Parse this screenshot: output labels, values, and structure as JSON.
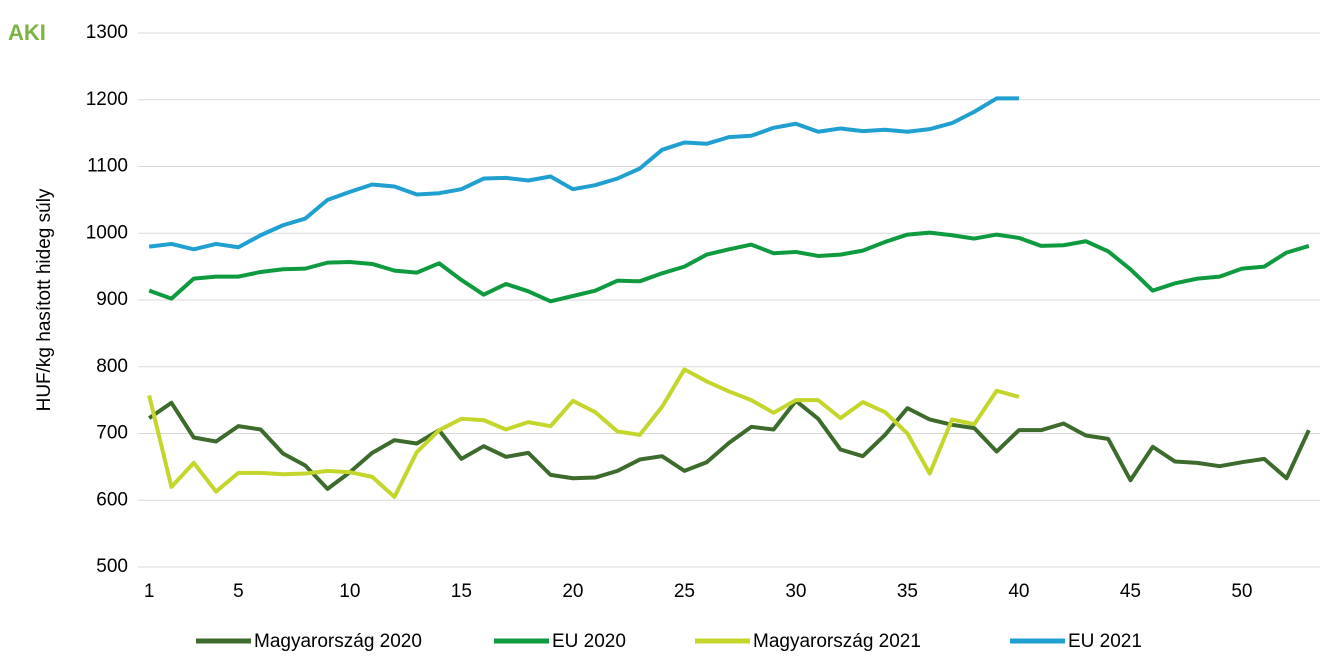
{
  "chart_data": {
    "type": "line",
    "logo": "AKI",
    "ylabel": "HUF/kg hasított hideg súly",
    "x": [
      1,
      2,
      3,
      4,
      5,
      6,
      7,
      8,
      9,
      10,
      11,
      12,
      13,
      14,
      15,
      16,
      17,
      18,
      19,
      20,
      21,
      22,
      23,
      24,
      25,
      26,
      27,
      28,
      29,
      30,
      31,
      32,
      33,
      34,
      35,
      36,
      37,
      38,
      39,
      40,
      41,
      42,
      43,
      44,
      45,
      46,
      47,
      48,
      49,
      50,
      51,
      52,
      53
    ],
    "xlim": [
      0.5,
      53.5
    ],
    "xticks": [
      1,
      5,
      10,
      15,
      20,
      25,
      30,
      35,
      40,
      45,
      50
    ],
    "ylim": [
      500,
      1300
    ],
    "yticks": [
      500,
      600,
      700,
      800,
      900,
      1000,
      1100,
      1200,
      1300
    ],
    "grid": true,
    "legend": "bottom",
    "series": [
      {
        "name": "Magyarország 2020",
        "color": "#3c6b2c",
        "values": [
          723,
          746,
          694,
          688,
          711,
          706,
          670,
          652,
          617,
          642,
          671,
          690,
          685,
          705,
          662,
          681,
          665,
          671,
          638,
          633,
          634,
          644,
          661,
          666,
          644,
          657,
          686,
          710,
          706,
          749,
          722,
          676,
          666,
          698,
          738,
          721,
          713,
          708,
          673,
          705,
          705,
          715,
          697,
          692,
          630,
          680,
          658,
          656,
          651,
          657,
          662,
          633,
          705
        ]
      },
      {
        "name": "EU 2020",
        "color": "#0e9a3f",
        "values": [
          914,
          902,
          932,
          935,
          935,
          942,
          946,
          947,
          956,
          957,
          954,
          944,
          941,
          955,
          930,
          908,
          924,
          913,
          898,
          906,
          914,
          929,
          928,
          940,
          950,
          968,
          976,
          983,
          970,
          972,
          966,
          968,
          974,
          987,
          998,
          1001,
          997,
          992,
          998,
          993,
          981,
          982,
          988,
          973,
          946,
          914,
          925,
          932,
          935,
          947,
          950,
          971,
          981
        ]
      },
      {
        "name": "Magyarország 2021",
        "color": "#c4d62b",
        "values": [
          757,
          620,
          656,
          613,
          641,
          641,
          639,
          640,
          644,
          642,
          635,
          605,
          672,
          705,
          722,
          720,
          706,
          717,
          711,
          749,
          732,
          703,
          698,
          740,
          796,
          778,
          763,
          750,
          731,
          750,
          750,
          723,
          747,
          732,
          700,
          640,
          721,
          714,
          764,
          755,
          null,
          null,
          null,
          null,
          null,
          null,
          null,
          null,
          null,
          null,
          null,
          null,
          null
        ]
      },
      {
        "name": "EU 2021",
        "color": "#1fa0d0",
        "values": [
          980,
          984,
          976,
          984,
          979,
          997,
          1012,
          1022,
          1050,
          1062,
          1073,
          1070,
          1058,
          1060,
          1066,
          1082,
          1083,
          1079,
          1085,
          1066,
          1072,
          1082,
          1097,
          1125,
          1136,
          1134,
          1144,
          1146,
          1158,
          1164,
          1152,
          1157,
          1153,
          1155,
          1152,
          1156,
          1165,
          1182,
          1202,
          1202,
          null,
          null,
          null,
          null,
          null,
          null,
          null,
          null,
          null,
          null,
          null,
          null,
          null
        ]
      }
    ]
  }
}
